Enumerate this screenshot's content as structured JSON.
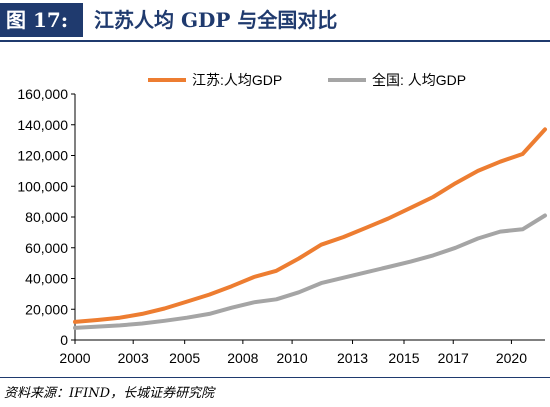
{
  "figure": {
    "label": "图 17:",
    "title": "江苏人均 GDP 与全国对比",
    "source": "资料来源：IFIND，长城证券研究院"
  },
  "colors": {
    "header_bg": "#1f3a6e",
    "series_jiangsu": "#ed7d31",
    "series_national": "#a5a5a5"
  },
  "chart_data": {
    "type": "line",
    "title": "",
    "xlabel": "",
    "ylabel": "",
    "x": [
      2000,
      2001,
      2002,
      2003,
      2004,
      2005,
      2006,
      2007,
      2008,
      2009,
      2010,
      2011,
      2012,
      2013,
      2014,
      2015,
      2016,
      2017,
      2018,
      2019,
      2020,
      2021
    ],
    "xticks": [
      "2000",
      "2003",
      "2005",
      "2008",
      "2010",
      "2013",
      "2015",
      "2017",
      "2020"
    ],
    "xtick_values": [
      2000,
      2002.6,
      2004.9,
      2007.5,
      2009.7,
      2012.4,
      2014.7,
      2016.9,
      2019.5
    ],
    "ylim": [
      0,
      160000
    ],
    "yticks": [
      "0",
      "20,000",
      "40,000",
      "60,000",
      "80,000",
      "100,000",
      "120,000",
      "140,000",
      "160,000"
    ],
    "ytick_values": [
      0,
      20000,
      40000,
      60000,
      80000,
      100000,
      120000,
      140000,
      160000
    ],
    "grid": false,
    "legend": "top-center",
    "series": [
      {
        "name": "江苏:人均GDP",
        "color": "#ed7d31",
        "values": [
          11800,
          13000,
          14500,
          17000,
          20500,
          25000,
          29500,
          35000,
          41000,
          45000,
          53000,
          62000,
          67000,
          73000,
          79000,
          86000,
          93000,
          102000,
          110000,
          116000,
          121000,
          137000
        ]
      },
      {
        "name": "全国:  人均GDP",
        "color": "#a5a5a5",
        "values": [
          7900,
          8700,
          9500,
          10700,
          12500,
          14500,
          17000,
          21000,
          24500,
          26500,
          31000,
          37000,
          40500,
          44000,
          47500,
          51000,
          55000,
          60000,
          66000,
          70500,
          72000,
          81000
        ]
      }
    ]
  }
}
